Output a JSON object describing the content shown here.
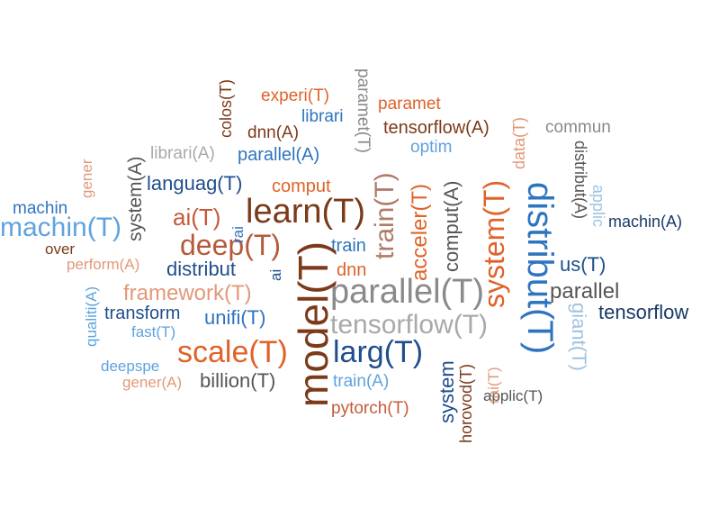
{
  "colors": {
    "dark_red": "#7b3a1a",
    "orange": "#e0622a",
    "light_orange": "#e2987a",
    "gray": "#8a8a8a",
    "light_gray": "#a9a9a9",
    "dark_blue": "#1f4e8c",
    "blue": "#2f74c0",
    "light_blue": "#5ea3de",
    "pale_blue": "#9fc2e0",
    "navy": "#173a67",
    "dark_gray": "#555555"
  },
  "words": [
    "model(T)",
    "learn(T)",
    "parallel(T)",
    "distribut(T)",
    "system(T)",
    "tensorflow(T)",
    "larg(T)",
    "scale(T)",
    "machin(T)",
    "deep(T)",
    "train(T)",
    "ai(T)",
    "framework(T)",
    "acceler(T)",
    "comput(A)",
    "parallel",
    "tensorflow",
    "languag(T)",
    "unifi(T)",
    "distribut",
    "system",
    "us(T)",
    "giant(T)",
    "billion(T)",
    "system(A)",
    "tensorflow(A)",
    "parallel(A)",
    "machin(A)",
    "machin",
    "comput",
    "transform",
    "train",
    "dnn",
    "horovod(T)",
    "pytorch(T)",
    "librari(A)",
    "experi(T)",
    "paramet(T)",
    "librari",
    "dnn(A)",
    "colos(T)",
    "paramet",
    "data(T)",
    "commun",
    "optim",
    "distribut(A)",
    "applic",
    "applic(T)",
    "perform(A)",
    "over",
    "gener",
    "qualiti(A)",
    "fast(T)",
    "deepspe",
    "gener(A)",
    "train(A)",
    "rai(T)",
    "rai",
    "ai"
  ]
}
